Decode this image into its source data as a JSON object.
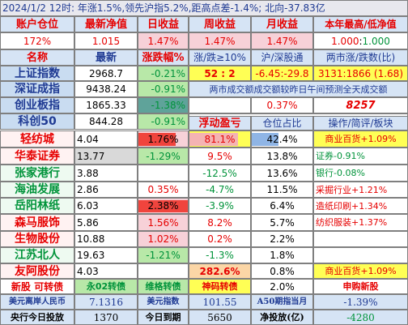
{
  "banner": "2024/1/2   12时: 年涨1.5%,领先沪指5.2%,距高点差-1.4%; 北向-37.83亿",
  "head": {
    "position": "账户仓位",
    "nav": "最新净值",
    "day": "日收益",
    "week": "周收益",
    "month": "月收益",
    "year_hilo": "本年最高/低净值",
    "position_v": "172%",
    "nav_v": "1.015",
    "day_v": "1.47%",
    "week_v": "1.47%",
    "month_v": "1.47%",
    "year_hi": "1.000",
    "year_sep": " : ",
    "year_lo": "1.000"
  },
  "idx_hdr": {
    "name": "名称",
    "latest": "最新",
    "chg": "涨跌幅%",
    "ratio": "涨/跌≥10%",
    "turnover": "沪/深股通",
    "breadth": "两市涨/跌数(比)"
  },
  "indices": [
    {
      "name": "上证指数",
      "latest": "2968.7",
      "chg": "-0.21%"
    },
    {
      "name": "深证成指",
      "latest": "9438.24",
      "chg": "-0.91%"
    },
    {
      "name": "创业板指",
      "latest": "1865.33",
      "chg": "-1.38%"
    },
    {
      "name": "科创50",
      "latest": "844.28",
      "chg": "-0.91%"
    }
  ],
  "idx_extra": {
    "ratio": "52 : 2",
    "turnover": "-6.45:-29.8",
    "breadth": "3131:1866 (1.68)",
    "note": "两市成交额成交额较昨日午间预测全天成交额",
    "pct": "0.37%",
    "amount": "8257"
  },
  "hold_hdr": {
    "float": "浮动盈亏",
    "ratio": "仓位占比",
    "op": "操作/简评/板块"
  },
  "holdings": [
    {
      "name": "轻纺城",
      "latest": "4.04",
      "chg": "1.76%",
      "float": "81.1%",
      "ratio": "42.4%",
      "op": "商业百货+1.09%"
    },
    {
      "name": "华泰证券",
      "latest": "13.77",
      "chg": "-1.29%",
      "float": "9.5%",
      "ratio": "13.8%",
      "op": "证券-0.91%"
    },
    {
      "name": "张家港行",
      "latest": "3.88",
      "chg": "",
      "float": "-12.5%",
      "ratio": "13.6%",
      "op": "银行-0.08%"
    },
    {
      "name": "海油发展",
      "latest": "2.86",
      "chg": "0.35%",
      "float": "-4.7%",
      "ratio": "11.5%",
      "op": "采掘行业+1.21%"
    },
    {
      "name": "岳阳林纸",
      "latest": "6.03",
      "chg": "2.38%",
      "float": "-3.9%",
      "ratio": "6.4%",
      "op": "造纸印刷+1.34%"
    },
    {
      "name": "森马服饰",
      "latest": "5.86",
      "chg": "1.56%",
      "float": "8.2%",
      "ratio": "5.7%",
      "op": "纺织服装+1.37%"
    },
    {
      "name": "生物股份",
      "latest": "10.88",
      "chg": "1.02%",
      "float": "0.2%",
      "ratio": "2.2%",
      "op": ""
    },
    {
      "name": "江苏北人",
      "latest": "19.63",
      "chg": "-1.21%",
      "float": "-1.3%",
      "ratio": "1.8%",
      "op": ""
    },
    {
      "name": "友阿股份",
      "latest": "4.03",
      "chg": "",
      "float": "282.6%",
      "ratio": "0.8%",
      "op": "商业百货+1.09%"
    }
  ],
  "newrow": {
    "name": "新股 可转债",
    "a": "永02转债",
    "b": "维格转债",
    "c": "神码转债",
    "ratio": "2.0%",
    "op": "申购新股"
  },
  "fx": {
    "l1": "美元离岸人民币",
    "v1": "7.1316",
    "l2": "美元指数",
    "v2": "101.55",
    "l3": "A50期指当月",
    "v3": "-1.39%"
  },
  "cb": {
    "l1": "央行今日投放",
    "v1": "1370",
    "l2": "今日到期",
    "v2": "5650",
    "l3": "净投放(亿)",
    "v3": "-4280"
  },
  "colors": {
    "red": "#e60000",
    "green": "#00933a",
    "pink": "#f7d1d8",
    "blue": "#c9dcf1",
    "yellow": "#ffff55",
    "lightgreen": "#b8e8a8"
  }
}
